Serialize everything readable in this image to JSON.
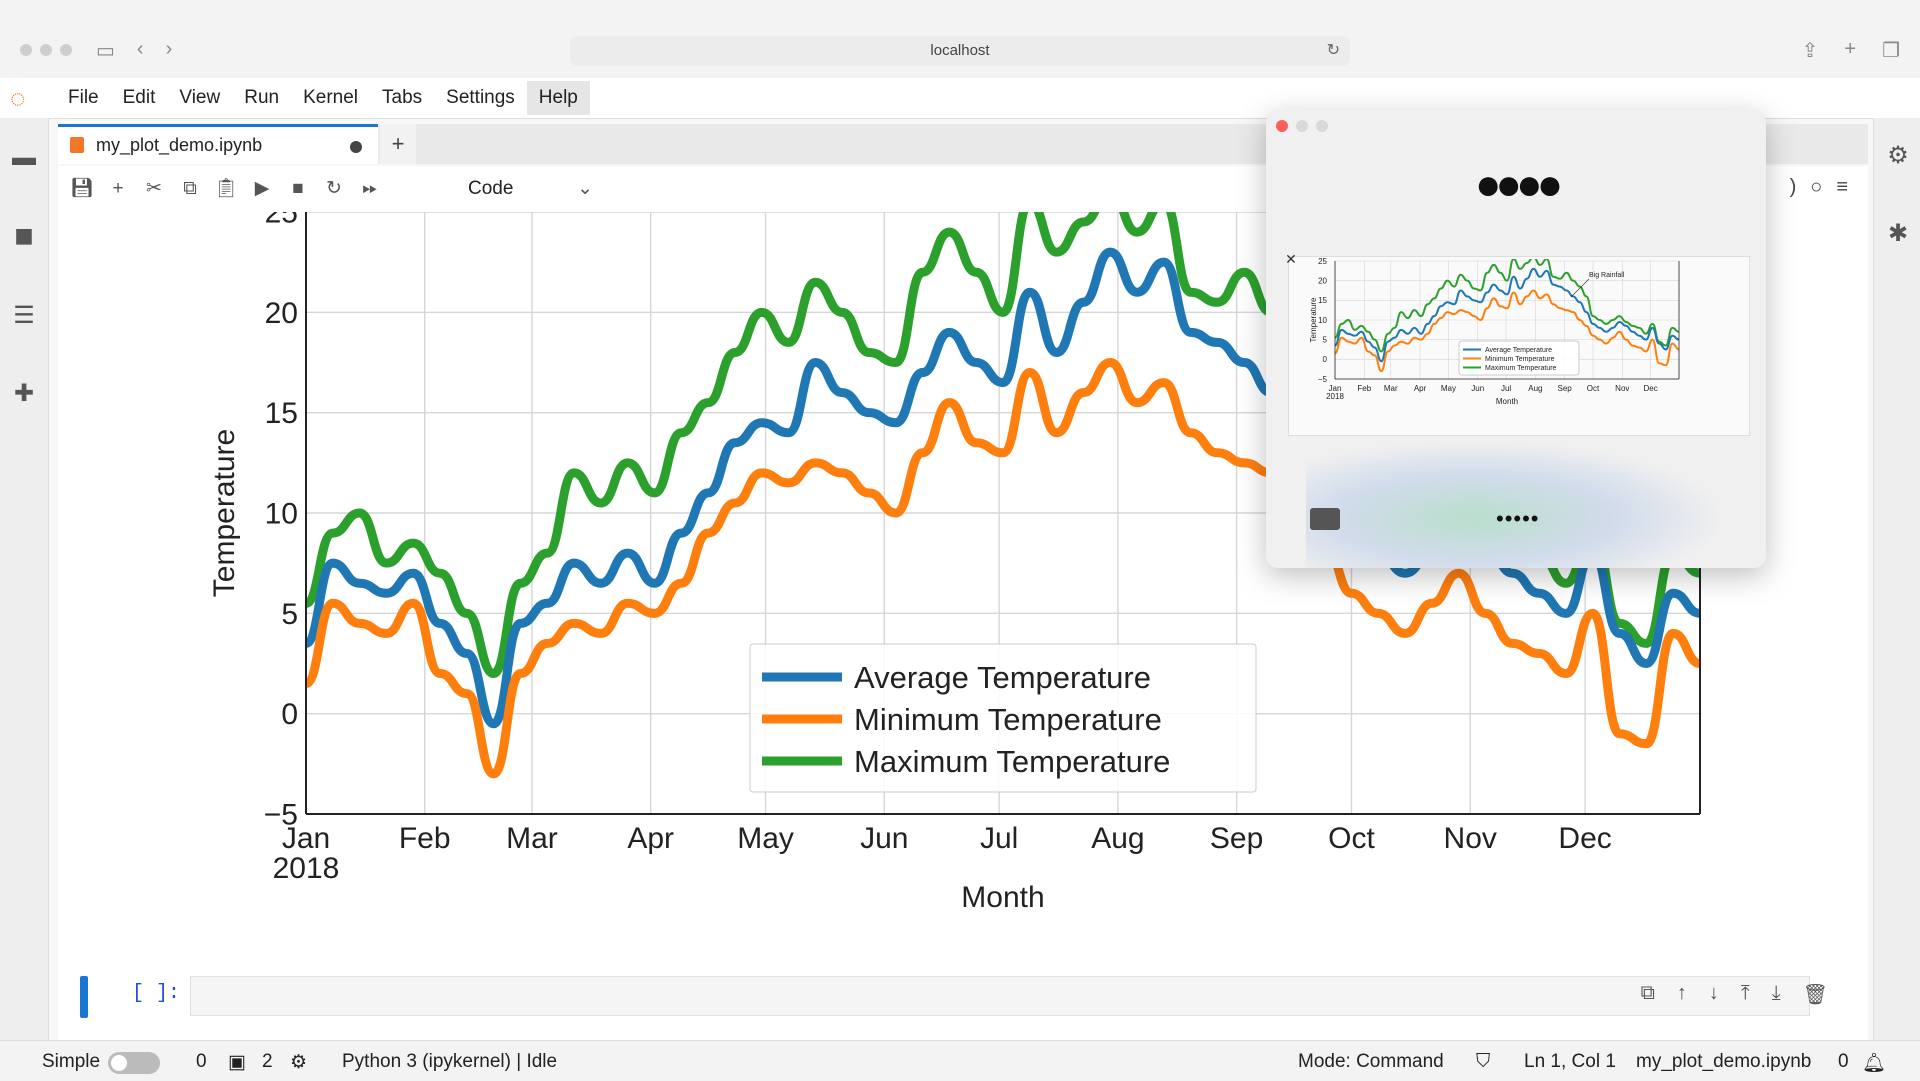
{
  "browser": {
    "url": "localhost"
  },
  "menubar": {
    "items": [
      "File",
      "Edit",
      "View",
      "Run",
      "Kernel",
      "Tabs",
      "Settings",
      "Help"
    ],
    "active": "Help"
  },
  "tab": {
    "label": "my_plot_demo.ipynb",
    "new_tab": "+"
  },
  "toolbar": {
    "cell_type": "Code"
  },
  "cell": {
    "prompt": "[ ]:"
  },
  "status": {
    "mode_label": "Simple",
    "terminals_count": "0",
    "kernels_count": "2",
    "kernel": "Python 3 (ipykernel) | Idle",
    "mode": "Mode: Command",
    "cursor": "Ln 1, Col 1",
    "file": "my_plot_demo.ipynb",
    "notifications": "0"
  },
  "preview": {
    "app_glyph": "●●●●",
    "password_dots": "•••••",
    "thumb_annotation": "Big Rainfall"
  },
  "colors": {
    "accent": "#1976d2",
    "avg": "#1f77b4",
    "min": "#ff7f0e",
    "max": "#2ca02c"
  },
  "chart_data": {
    "type": "line",
    "xlabel": "Month",
    "ylabel": "Temperature",
    "ylim": [
      -5,
      25
    ],
    "yticks": [
      -5,
      0,
      5,
      10,
      15,
      20,
      25
    ],
    "xticks": [
      "Jan\n2018",
      "Feb",
      "Mar",
      "Apr",
      "May",
      "Jun",
      "Jul",
      "Aug",
      "Sep",
      "Oct",
      "Nov",
      "Dec"
    ],
    "legend_position": "lower-center",
    "grid": true,
    "x": [
      "2018-01-01",
      "2018-01-08",
      "2018-01-15",
      "2018-01-22",
      "2018-01-29",
      "2018-02-05",
      "2018-02-12",
      "2018-02-19",
      "2018-02-26",
      "2018-03-05",
      "2018-03-12",
      "2018-03-19",
      "2018-03-26",
      "2018-04-02",
      "2018-04-09",
      "2018-04-16",
      "2018-04-23",
      "2018-04-30",
      "2018-05-07",
      "2018-05-14",
      "2018-05-21",
      "2018-05-28",
      "2018-06-04",
      "2018-06-11",
      "2018-06-18",
      "2018-06-25",
      "2018-07-02",
      "2018-07-09",
      "2018-07-16",
      "2018-07-23",
      "2018-07-30",
      "2018-08-06",
      "2018-08-13",
      "2018-08-20",
      "2018-08-27",
      "2018-09-03",
      "2018-09-10",
      "2018-09-17",
      "2018-09-24",
      "2018-10-01",
      "2018-10-08",
      "2018-10-15",
      "2018-10-22",
      "2018-10-29",
      "2018-11-05",
      "2018-11-12",
      "2018-11-19",
      "2018-11-26",
      "2018-12-03",
      "2018-12-10",
      "2018-12-17",
      "2018-12-24",
      "2018-12-31"
    ],
    "series": [
      {
        "name": "Average Temperature",
        "values": [
          3.5,
          7.5,
          6.5,
          6.0,
          7.0,
          4.5,
          3.0,
          -0.5,
          4.5,
          5.5,
          7.5,
          6.5,
          8.0,
          6.5,
          9.0,
          11.0,
          13.5,
          14.5,
          14.0,
          17.5,
          16.0,
          15.0,
          14.5,
          17.0,
          19.0,
          17.5,
          16.5,
          21.0,
          18.0,
          20.5,
          23.0,
          21.0,
          22.5,
          19.0,
          18.5,
          17.5,
          16.0,
          14.5,
          12.0,
          9.0,
          8.0,
          7.0,
          8.0,
          9.5,
          8.5,
          7.0,
          6.0,
          5.0,
          8.0,
          4.0,
          2.5,
          6.0,
          5.0
        ]
      },
      {
        "name": "Minimum Temperature",
        "values": [
          1.5,
          5.5,
          4.5,
          4.0,
          5.5,
          2.0,
          1.0,
          -3.0,
          2.0,
          3.5,
          4.5,
          4.0,
          5.5,
          5.0,
          6.5,
          9.0,
          10.5,
          12.0,
          11.5,
          12.5,
          12.0,
          11.0,
          10.0,
          13.0,
          15.5,
          13.5,
          13.0,
          17.0,
          14.0,
          16.0,
          17.5,
          15.5,
          16.5,
          14.0,
          13.0,
          12.5,
          12.0,
          10.0,
          8.5,
          6.0,
          5.0,
          4.0,
          5.5,
          7.0,
          5.0,
          3.5,
          3.0,
          2.0,
          5.0,
          -1.0,
          -1.5,
          4.0,
          2.5
        ]
      },
      {
        "name": "Maximum Temperature",
        "values": [
          5.5,
          9.0,
          10.0,
          7.5,
          8.5,
          7.0,
          5.0,
          2.0,
          6.5,
          8.0,
          12.0,
          10.5,
          12.5,
          11.0,
          14.0,
          15.5,
          18.0,
          20.0,
          18.5,
          21.5,
          20.0,
          18.0,
          17.5,
          22.0,
          24.0,
          22.0,
          20.0,
          25.5,
          23.0,
          24.5,
          26.0,
          24.0,
          25.5,
          21.0,
          20.5,
          22.0,
          20.0,
          18.5,
          16.0,
          11.0,
          10.0,
          9.0,
          10.0,
          11.0,
          9.5,
          8.5,
          8.0,
          6.5,
          9.0,
          4.5,
          3.5,
          8.0,
          7.0
        ]
      }
    ]
  }
}
